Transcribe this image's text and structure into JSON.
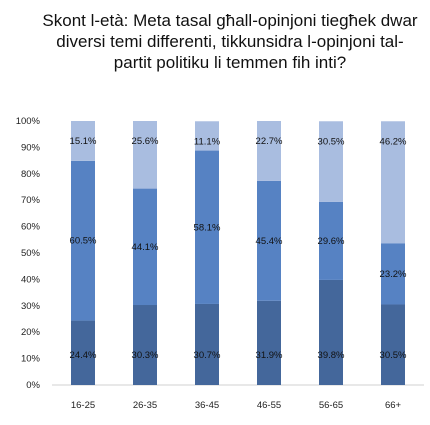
{
  "chart_data": {
    "type": "bar",
    "stacked": true,
    "percent_scale": true,
    "title": "Skont l-età: Meta tasal għall-opinjoni tiegħek dwar diversi temi differenti, tikkunsidra l-opinjoni tal-partit politiku li temmen fih inti?",
    "xlabel": "",
    "ylabel": "",
    "ylim": [
      0,
      100
    ],
    "y_ticks": [
      "0%",
      "10%",
      "20%",
      "30%",
      "40%",
      "50%",
      "60%",
      "70%",
      "80%",
      "90%",
      "100%"
    ],
    "categories": [
      "16-25",
      "26-35",
      "36-45",
      "46-55",
      "56-65",
      "66+"
    ],
    "series": [
      {
        "values": [
          24.4,
          30.3,
          30.7,
          31.9,
          39.8,
          30.5
        ],
        "labels": [
          "24.4%",
          "30.3%",
          "30.7%",
          "31.9%",
          "39.8%",
          "30.5%"
        ],
        "color": "#44679b"
      },
      {
        "values": [
          60.5,
          44.1,
          58.1,
          45.4,
          29.6,
          23.2
        ],
        "labels": [
          "60.5%",
          "44.1%",
          "58.1%",
          "45.4%",
          "29.6%",
          "23.2%"
        ],
        "color": "#5682c3"
      },
      {
        "values": [
          15.1,
          25.6,
          11.1,
          22.7,
          30.5,
          46.2
        ],
        "labels": [
          "15.1%",
          "25.6%",
          "11.1%",
          "22.7%",
          "30.5%",
          "46.2%"
        ],
        "color": "#a9bde0"
      }
    ],
    "legend": "none",
    "grid": false
  }
}
